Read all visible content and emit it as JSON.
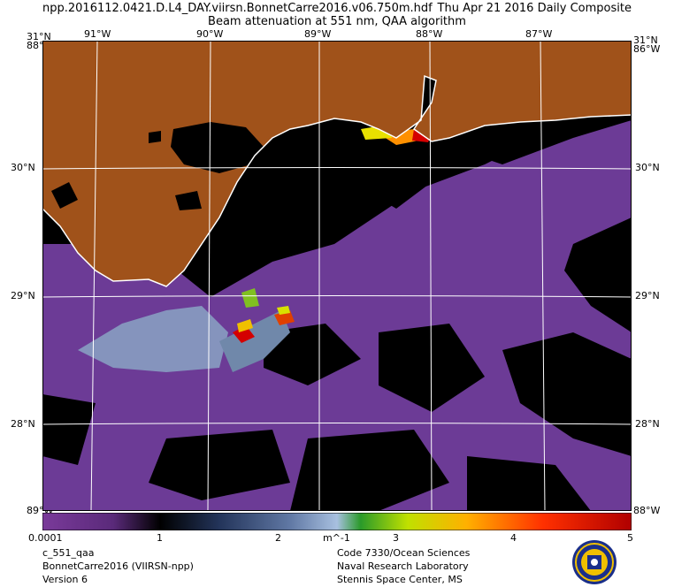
{
  "header": {
    "filename": "npp.2016112.0421.D.L4_DAY.viirsn.BonnetCarre2016.v06.750m.hdf",
    "date": "Thu Apr 21 2016 Daily Composite",
    "subtitle": "Beam attenuation at 551 nm, QAA algorithm"
  },
  "axes": {
    "lon_top": [
      "91°W",
      "90°W",
      "89°W",
      "88°W",
      "87°W"
    ],
    "lat_left": [
      "30°N",
      "29°N",
      "28°N"
    ],
    "lat_right": [
      "30°N",
      "29°N",
      "28°N"
    ],
    "corner_top_left_lat": "31°N",
    "corner_top_left_lon": "88°W",
    "corner_top_right_lat": "31°N",
    "corner_top_right_lon": "86°W",
    "corner_bottom_left": "89°W",
    "corner_bottom_right": "88°W"
  },
  "colorbar": {
    "ticks": [
      "0.0001",
      "1",
      "2",
      "3",
      "4",
      "5"
    ],
    "unit": "m^-1"
  },
  "footer": {
    "product": "c_551_qaa",
    "region": "BonnetCarre2016 (VIIRSN-npp)",
    "version": "Version 6",
    "org_line1": "Code 7330/Ocean Sciences",
    "org_line2": "Naval Research Laboratory",
    "org_line3": "Stennis Space Center, MS"
  },
  "colors": {
    "land": "#a0521a",
    "water_background": "#6c3b96",
    "no_data": "#000000",
    "coastline": "#ffffff"
  }
}
